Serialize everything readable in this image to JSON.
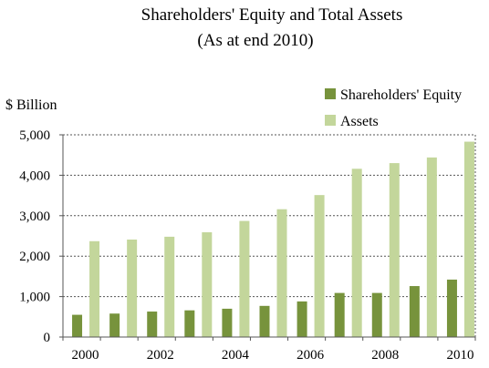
{
  "chart_data": {
    "type": "bar",
    "title": "Shareholders' Equity and Total Assets",
    "subtitle": "(As at end 2010)",
    "ylabel": "$ Billion",
    "xlabel": "",
    "ylim": [
      0,
      5000
    ],
    "yticks": [
      0,
      1000,
      2000,
      3000,
      4000,
      5000
    ],
    "ytick_labels": [
      "0",
      "1,000",
      "2,000",
      "3,000",
      "4,000",
      "5,000"
    ],
    "categories": [
      "2000",
      "2001",
      "2002",
      "2003",
      "2004",
      "2005",
      "2006",
      "2007",
      "2008",
      "2009",
      "2010"
    ],
    "xtick_labels": [
      "2000",
      "2002",
      "2004",
      "2006",
      "2008",
      "2010"
    ],
    "grid": true,
    "legend_position": "top-right",
    "series": [
      {
        "name": "Shareholders' Equity",
        "color": "#77933c",
        "values": [
          550,
          580,
          630,
          660,
          700,
          770,
          880,
          1090,
          1090,
          1260,
          1420
        ]
      },
      {
        "name": "Assets",
        "color": "#c3d69b",
        "values": [
          2370,
          2410,
          2480,
          2590,
          2870,
          3160,
          3510,
          4160,
          4300,
          4440,
          4830
        ]
      }
    ]
  }
}
